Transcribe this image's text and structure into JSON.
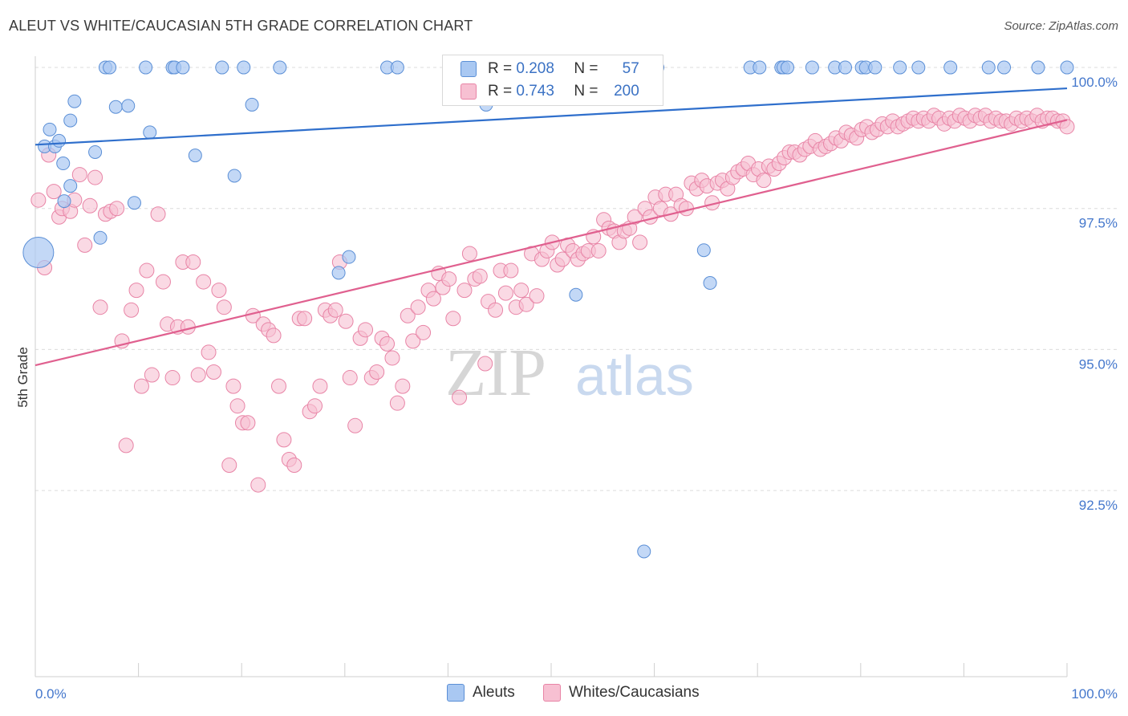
{
  "title": "ALEUT VS WHITE/CAUCASIAN 5TH GRADE CORRELATION CHART",
  "source": "Source: ZipAtlas.com",
  "watermark": {
    "zip": "ZIP",
    "atlas": "atlas"
  },
  "legend": {
    "series1": {
      "r_label": "R =",
      "r_value": "0.208",
      "n_label": "N =",
      "n_value": "57"
    },
    "series2": {
      "r_label": "R =",
      "r_value": "0.743",
      "n_label": "N =",
      "n_value": "200"
    }
  },
  "bottom_legend": {
    "series1": "Aleuts",
    "series2": "Whites/Caucasians"
  },
  "chart_data": {
    "type": "scatter",
    "title": "ALEUT VS WHITE/CAUCASIAN 5TH GRADE CORRELATION CHART",
    "xlabel": "",
    "ylabel": "5th Grade",
    "xlim": [
      0,
      100
    ],
    "ylim": [
      89.2,
      100.2
    ],
    "x_tick_labels": [
      "0.0%",
      "100.0%"
    ],
    "y_ticks": [
      92.5,
      95.0,
      97.5,
      100.0
    ],
    "y_tick_labels": [
      "92.5%",
      "95.0%",
      "97.5%",
      "100.0%"
    ],
    "grid": true,
    "colors": {
      "aleut_fill": "#a9c8f2",
      "aleut_stroke": "#5b8fd6",
      "aleut_line": "#2f6fcc",
      "white_fill": "#f7c0d2",
      "white_stroke": "#e884a6",
      "white_line": "#e0608f"
    },
    "series": [
      {
        "name": "Aleuts",
        "r": 0.208,
        "n": 57,
        "trend": {
          "x": [
            0,
            100
          ],
          "y": [
            98.63,
            99.63
          ]
        },
        "points": [
          [
            0.3,
            96.72,
            "big"
          ],
          [
            0.9,
            98.6
          ],
          [
            1.4,
            98.9
          ],
          [
            1.9,
            98.6
          ],
          [
            2.3,
            98.7
          ],
          [
            2.7,
            98.3
          ],
          [
            2.8,
            97.63
          ],
          [
            3.4,
            99.06
          ],
          [
            3.4,
            97.9
          ],
          [
            3.8,
            99.4
          ],
          [
            5.8,
            98.5
          ],
          [
            6.3,
            96.98
          ],
          [
            6.8,
            100
          ],
          [
            7.2,
            100
          ],
          [
            7.8,
            99.3
          ],
          [
            9.0,
            99.32
          ],
          [
            9.6,
            97.6
          ],
          [
            10.7,
            100
          ],
          [
            11.1,
            98.85
          ],
          [
            13.3,
            100
          ],
          [
            13.5,
            100
          ],
          [
            14.3,
            100
          ],
          [
            15.5,
            98.44
          ],
          [
            18.1,
            100
          ],
          [
            19.3,
            98.08
          ],
          [
            20.2,
            100
          ],
          [
            21.0,
            99.34
          ],
          [
            23.7,
            100
          ],
          [
            29.4,
            96.36
          ],
          [
            30.4,
            96.64
          ],
          [
            34.1,
            100
          ],
          [
            35.1,
            100
          ],
          [
            43.7,
            99.34
          ],
          [
            52.4,
            95.97
          ],
          [
            57.6,
            100
          ],
          [
            59.0,
            91.42
          ],
          [
            60.3,
            100
          ],
          [
            64.8,
            96.76
          ],
          [
            65.4,
            96.18
          ],
          [
            69.3,
            100
          ],
          [
            70.2,
            100
          ],
          [
            72.3,
            100
          ],
          [
            72.5,
            100
          ],
          [
            72.9,
            100
          ],
          [
            75.3,
            100
          ],
          [
            77.5,
            100
          ],
          [
            78.5,
            100
          ],
          [
            80.1,
            100
          ],
          [
            80.5,
            100
          ],
          [
            81.4,
            100
          ],
          [
            83.8,
            100
          ],
          [
            85.6,
            100
          ],
          [
            88.7,
            100
          ],
          [
            92.4,
            100
          ],
          [
            93.9,
            100
          ],
          [
            97.2,
            100
          ],
          [
            100,
            100
          ]
        ]
      },
      {
        "name": "Whites/Caucasians",
        "r": 0.743,
        "n": 200,
        "trend": {
          "x": [
            0,
            100
          ],
          "y": [
            94.72,
            99.07
          ]
        },
        "points": [
          [
            0.3,
            97.65
          ],
          [
            0.9,
            96.45
          ],
          [
            1.3,
            98.45
          ],
          [
            1.8,
            97.8
          ],
          [
            2.3,
            97.35
          ],
          [
            2.6,
            97.5
          ],
          [
            3.4,
            97.45
          ],
          [
            3.8,
            97.65
          ],
          [
            4.3,
            98.1
          ],
          [
            4.8,
            96.85
          ],
          [
            5.3,
            97.55
          ],
          [
            5.8,
            98.05
          ],
          [
            6.3,
            95.75
          ],
          [
            6.8,
            97.4
          ],
          [
            7.3,
            97.45
          ],
          [
            7.9,
            97.5
          ],
          [
            8.4,
            95.15
          ],
          [
            8.8,
            93.3
          ],
          [
            9.3,
            95.7
          ],
          [
            9.8,
            96.05
          ],
          [
            10.3,
            94.35
          ],
          [
            10.8,
            96.4
          ],
          [
            11.3,
            94.55
          ],
          [
            11.9,
            97.4
          ],
          [
            12.4,
            96.2
          ],
          [
            12.8,
            95.45
          ],
          [
            13.3,
            94.5
          ],
          [
            13.8,
            95.4
          ],
          [
            14.3,
            96.55
          ],
          [
            14.8,
            95.4
          ],
          [
            15.3,
            96.55
          ],
          [
            15.8,
            94.55
          ],
          [
            16.3,
            96.2
          ],
          [
            16.8,
            94.95
          ],
          [
            17.3,
            94.6
          ],
          [
            17.8,
            96.05
          ],
          [
            18.3,
            95.75
          ],
          [
            18.8,
            92.95
          ],
          [
            19.2,
            94.35
          ],
          [
            19.6,
            94
          ],
          [
            20.1,
            93.7
          ],
          [
            20.6,
            93.7
          ],
          [
            21.1,
            95.6
          ],
          [
            21.6,
            92.6
          ],
          [
            22.1,
            95.45
          ],
          [
            22.6,
            95.35
          ],
          [
            23.1,
            95.25
          ],
          [
            23.6,
            94.35
          ],
          [
            24.1,
            93.4
          ],
          [
            24.6,
            93.05
          ],
          [
            25.1,
            92.95
          ],
          [
            25.6,
            95.55
          ],
          [
            26.1,
            95.55
          ],
          [
            26.6,
            93.9
          ],
          [
            27.1,
            94
          ],
          [
            27.6,
            94.35
          ],
          [
            28.1,
            95.7
          ],
          [
            28.6,
            95.6
          ],
          [
            29.1,
            95.7
          ],
          [
            29.5,
            96.55
          ],
          [
            30.1,
            95.5
          ],
          [
            30.5,
            94.5
          ],
          [
            31.0,
            93.65
          ],
          [
            31.5,
            95.2
          ],
          [
            32.0,
            95.35
          ],
          [
            32.6,
            94.5
          ],
          [
            33.1,
            94.6
          ],
          [
            33.6,
            95.2
          ],
          [
            34.1,
            95.1
          ],
          [
            34.6,
            94.85
          ],
          [
            35.1,
            94.05
          ],
          [
            35.6,
            94.35
          ],
          [
            36.1,
            95.6
          ],
          [
            36.6,
            95.15
          ],
          [
            37.1,
            95.75
          ],
          [
            37.6,
            95.3
          ],
          [
            38.1,
            96.05
          ],
          [
            38.6,
            95.9
          ],
          [
            39.1,
            96.35
          ],
          [
            39.5,
            96.1
          ],
          [
            40.1,
            96.25
          ],
          [
            40.5,
            95.55
          ],
          [
            41.1,
            94.15
          ],
          [
            41.6,
            96.05
          ],
          [
            42.1,
            96.7
          ],
          [
            42.6,
            96.25
          ],
          [
            43.1,
            96.3
          ],
          [
            43.6,
            94.75
          ],
          [
            43.9,
            95.85
          ],
          [
            44.6,
            95.7
          ],
          [
            45.1,
            96.4
          ],
          [
            45.6,
            96
          ],
          [
            46.1,
            96.4
          ],
          [
            46.6,
            95.75
          ],
          [
            47.1,
            96.05
          ],
          [
            47.6,
            95.8
          ],
          [
            48.1,
            96.7
          ],
          [
            48.6,
            95.95
          ],
          [
            49.1,
            96.6
          ],
          [
            49.6,
            96.75
          ],
          [
            50.1,
            96.9
          ],
          [
            50.6,
            96.5
          ],
          [
            51.1,
            96.6
          ],
          [
            51.6,
            96.85
          ],
          [
            52.1,
            96.75
          ],
          [
            52.6,
            96.6
          ],
          [
            53.1,
            96.7
          ],
          [
            53.6,
            96.75
          ],
          [
            54.1,
            97
          ],
          [
            54.6,
            96.75
          ],
          [
            55.1,
            97.3
          ],
          [
            55.6,
            97.15
          ],
          [
            56.1,
            97.1
          ],
          [
            56.6,
            96.9
          ],
          [
            57.1,
            97.1
          ],
          [
            57.6,
            97.15
          ],
          [
            58.1,
            97.35
          ],
          [
            58.6,
            96.9
          ],
          [
            59.1,
            97.5
          ],
          [
            59.6,
            97.35
          ],
          [
            60.1,
            97.7
          ],
          [
            60.6,
            97.5
          ],
          [
            61.1,
            97.75
          ],
          [
            61.6,
            97.4
          ],
          [
            62.1,
            97.75
          ],
          [
            62.6,
            97.55
          ],
          [
            63.1,
            97.5
          ],
          [
            63.6,
            97.95
          ],
          [
            64.1,
            97.85
          ],
          [
            64.6,
            98
          ],
          [
            65.1,
            97.9
          ],
          [
            65.6,
            97.6
          ],
          [
            66.1,
            97.95
          ],
          [
            66.6,
            98
          ],
          [
            67.1,
            97.85
          ],
          [
            67.6,
            98.05
          ],
          [
            68.1,
            98.15
          ],
          [
            68.6,
            98.2
          ],
          [
            69.1,
            98.3
          ],
          [
            69.6,
            98.1
          ],
          [
            70.1,
            98.2
          ],
          [
            70.6,
            98
          ],
          [
            71.1,
            98.25
          ],
          [
            71.6,
            98.2
          ],
          [
            72.1,
            98.3
          ],
          [
            72.6,
            98.4
          ],
          [
            73.1,
            98.5
          ],
          [
            73.6,
            98.5
          ],
          [
            74.1,
            98.45
          ],
          [
            74.6,
            98.55
          ],
          [
            75.1,
            98.6
          ],
          [
            75.6,
            98.7
          ],
          [
            76.1,
            98.55
          ],
          [
            76.6,
            98.6
          ],
          [
            77.1,
            98.65
          ],
          [
            77.6,
            98.75
          ],
          [
            78.1,
            98.7
          ],
          [
            78.6,
            98.85
          ],
          [
            79.1,
            98.8
          ],
          [
            79.6,
            98.75
          ],
          [
            80.1,
            98.9
          ],
          [
            80.6,
            98.95
          ],
          [
            81.1,
            98.85
          ],
          [
            81.6,
            98.9
          ],
          [
            82.1,
            99
          ],
          [
            82.6,
            98.95
          ],
          [
            83.1,
            99.05
          ],
          [
            83.6,
            98.95
          ],
          [
            84.1,
            99
          ],
          [
            84.6,
            99.05
          ],
          [
            85.1,
            99.1
          ],
          [
            85.6,
            99.05
          ],
          [
            86.1,
            99.1
          ],
          [
            86.6,
            99.05
          ],
          [
            87.1,
            99.15
          ],
          [
            87.6,
            99.1
          ],
          [
            88.1,
            99
          ],
          [
            88.6,
            99.1
          ],
          [
            89.1,
            99.05
          ],
          [
            89.6,
            99.15
          ],
          [
            90.1,
            99.1
          ],
          [
            90.6,
            99.05
          ],
          [
            91.1,
            99.15
          ],
          [
            91.6,
            99.1
          ],
          [
            92.1,
            99.15
          ],
          [
            92.6,
            99.05
          ],
          [
            93.1,
            99.1
          ],
          [
            93.6,
            99.05
          ],
          [
            94.1,
            99.05
          ],
          [
            94.6,
            99
          ],
          [
            95.1,
            99.1
          ],
          [
            95.6,
            99.05
          ],
          [
            96.1,
            99.1
          ],
          [
            96.6,
            99.05
          ],
          [
            97.1,
            99.15
          ],
          [
            97.6,
            99.05
          ],
          [
            98.1,
            99.1
          ],
          [
            98.6,
            99.1
          ],
          [
            99.1,
            99.05
          ],
          [
            99.6,
            99.05
          ],
          [
            100,
            98.95
          ]
        ]
      }
    ]
  }
}
